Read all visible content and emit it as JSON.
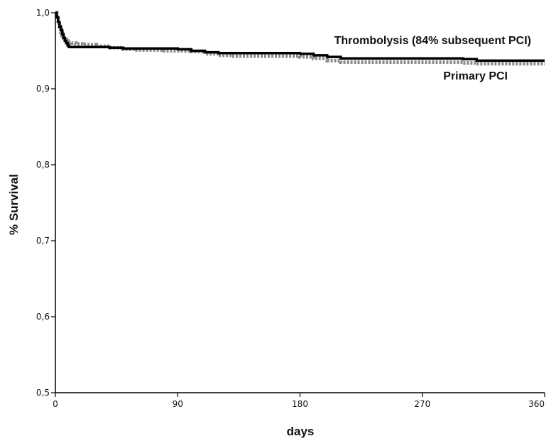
{
  "chart_data": {
    "type": "line",
    "title": "",
    "xlabel": "days",
    "ylabel": "% Survival",
    "xlim": [
      0,
      360
    ],
    "ylim": [
      0.5,
      1.0
    ],
    "x_ticks": [
      0,
      90,
      180,
      270,
      360
    ],
    "x_tick_labels": [
      "0",
      "90",
      "180",
      "270",
      "360"
    ],
    "y_ticks": [
      0.5,
      0.6,
      0.7,
      0.8,
      0.9,
      1.0
    ],
    "y_tick_labels": [
      "0,5",
      "0,6",
      "0,7",
      "0,8",
      "0,9",
      "1,0"
    ],
    "grid": false,
    "legend": "inline-labels",
    "series": [
      {
        "name": "Primary PCI",
        "style": "solid",
        "color": "#000000",
        "x": [
          0,
          1,
          2,
          3,
          4,
          5,
          6,
          7,
          8,
          9,
          10,
          12,
          15,
          20,
          30,
          40,
          50,
          60,
          70,
          80,
          90,
          100,
          110,
          120,
          130,
          140,
          150,
          160,
          170,
          180,
          190,
          200,
          210,
          220,
          230,
          240,
          250,
          260,
          270,
          280,
          290,
          300,
          310,
          320,
          330,
          340,
          350,
          360
        ],
        "y": [
          1.0,
          0.994,
          0.988,
          0.982,
          0.977,
          0.972,
          0.967,
          0.963,
          0.96,
          0.957,
          0.955,
          0.955,
          0.955,
          0.955,
          0.955,
          0.954,
          0.953,
          0.953,
          0.953,
          0.953,
          0.952,
          0.95,
          0.948,
          0.947,
          0.947,
          0.947,
          0.947,
          0.947,
          0.947,
          0.946,
          0.944,
          0.942,
          0.94,
          0.94,
          0.94,
          0.94,
          0.94,
          0.94,
          0.94,
          0.94,
          0.94,
          0.939,
          0.937,
          0.937,
          0.937,
          0.937,
          0.937,
          0.937
        ]
      },
      {
        "name": "Thrombolysis (84% subsequent PCI)",
        "style": "dotted",
        "color": "#8a8a8a",
        "x": [
          0,
          1,
          2,
          3,
          4,
          5,
          6,
          7,
          8,
          9,
          10,
          12,
          15,
          20,
          30,
          40,
          50,
          60,
          70,
          80,
          90,
          100,
          110,
          120,
          130,
          140,
          150,
          160,
          170,
          180,
          190,
          200,
          210,
          220,
          230,
          240,
          250,
          260,
          270,
          280,
          290,
          300,
          310,
          320,
          330,
          340,
          350,
          360
        ],
        "y": [
          1.0,
          0.993,
          0.985,
          0.979,
          0.974,
          0.97,
          0.967,
          0.965,
          0.963,
          0.962,
          0.961,
          0.96,
          0.959,
          0.958,
          0.956,
          0.954,
          0.952,
          0.951,
          0.951,
          0.95,
          0.95,
          0.949,
          0.946,
          0.944,
          0.943,
          0.943,
          0.943,
          0.943,
          0.943,
          0.942,
          0.94,
          0.937,
          0.935,
          0.935,
          0.935,
          0.935,
          0.935,
          0.935,
          0.935,
          0.935,
          0.935,
          0.934,
          0.933,
          0.933,
          0.933,
          0.933,
          0.933,
          0.933
        ]
      }
    ]
  }
}
